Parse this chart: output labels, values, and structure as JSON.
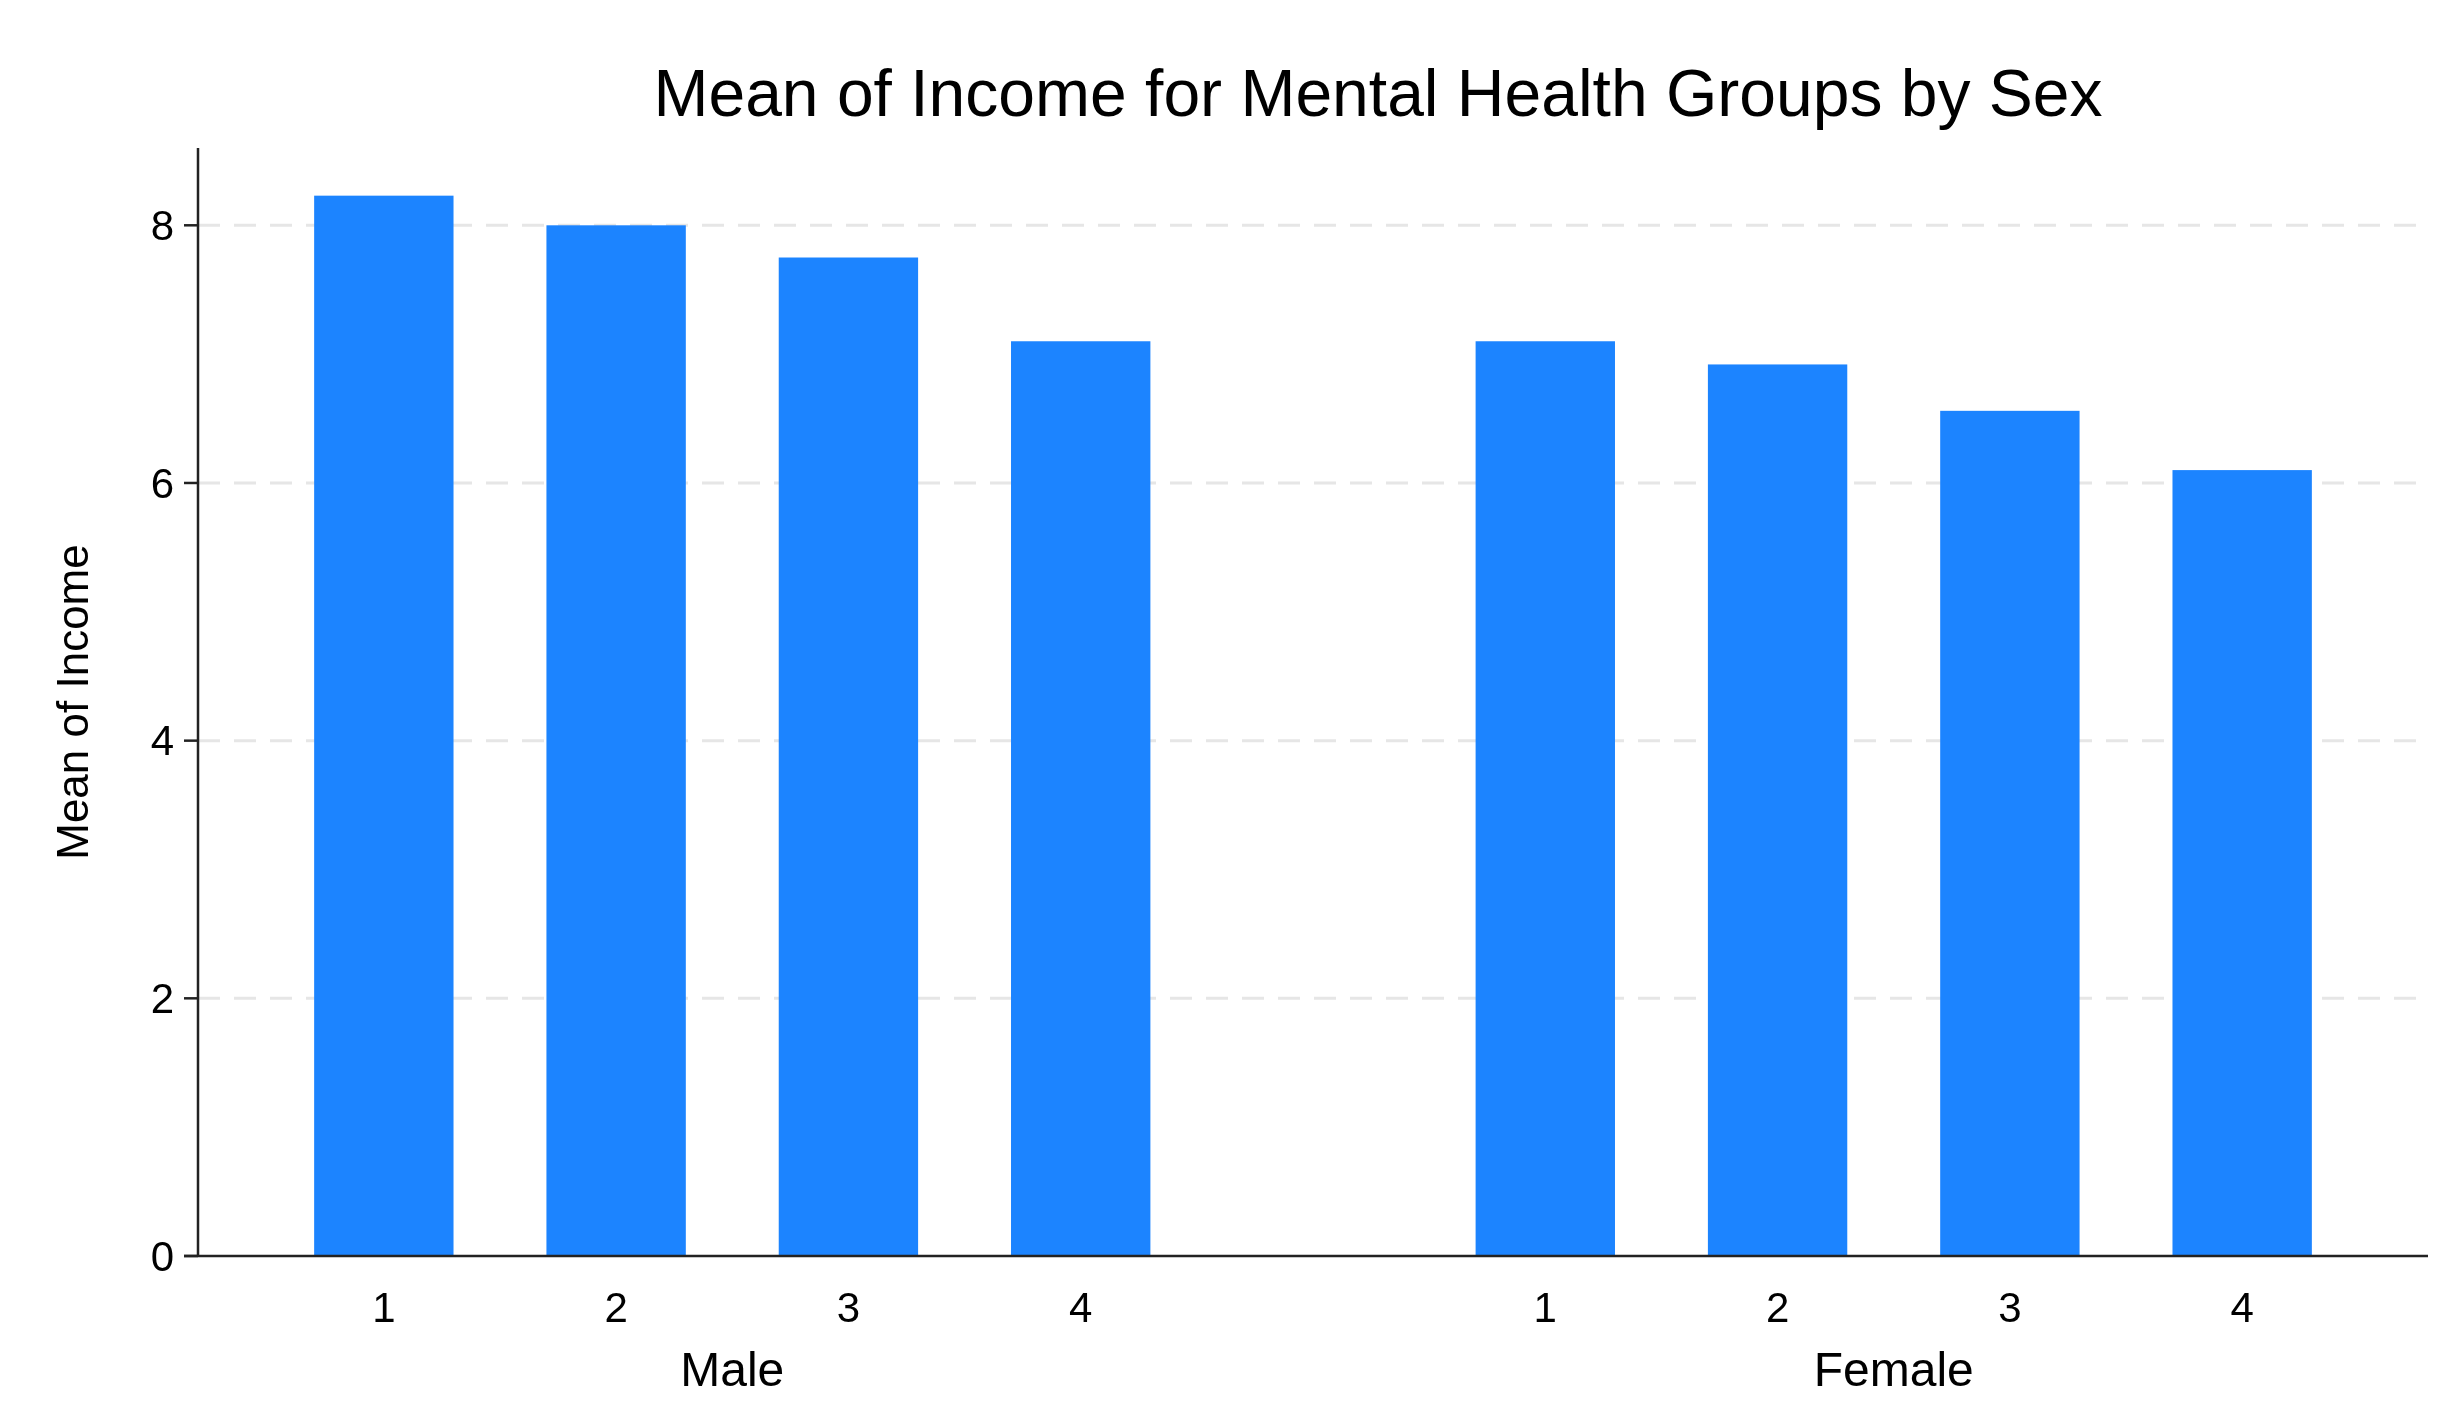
{
  "chart_data": {
    "type": "bar",
    "title": "Mean of Income for Mental Health Groups by Sex",
    "ylabel": "Mean of Income",
    "categories": [
      "1",
      "2",
      "3",
      "4",
      null,
      "1",
      "2",
      "3",
      "4"
    ],
    "values": [
      8.23,
      8.0,
      7.75,
      7.1,
      null,
      7.1,
      6.92,
      6.56,
      6.1
    ],
    "color": "#1c84ff",
    "ylim": [
      0,
      8.6
    ],
    "yticks": [
      0,
      2,
      4,
      6,
      8
    ],
    "grid": "y",
    "annotations": [
      "Male",
      "Female"
    ]
  }
}
